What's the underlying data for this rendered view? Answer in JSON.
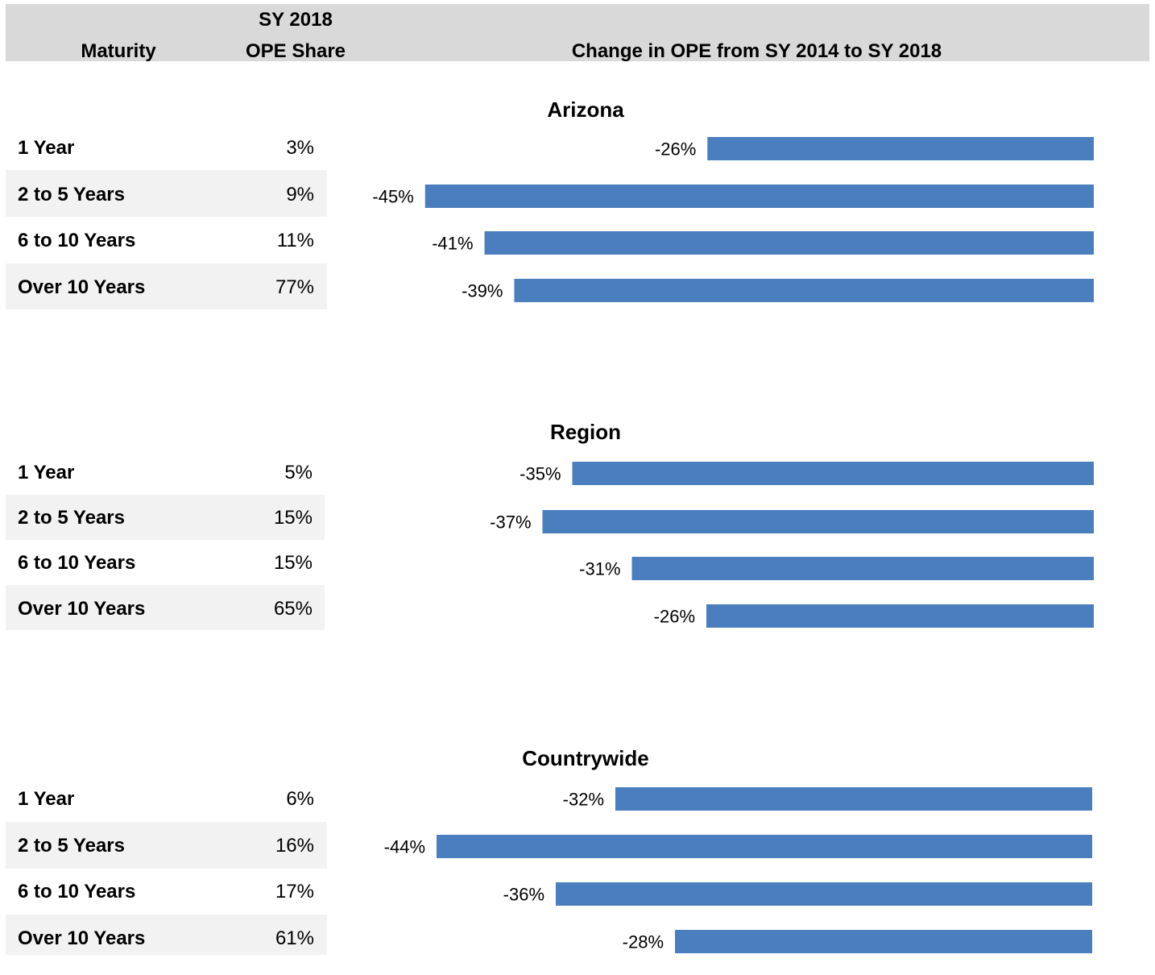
{
  "header": {
    "maturity": "Maturity",
    "share_line1": "SY 2018",
    "share_line2": "OPE Share",
    "change": "Change in OPE from SY 2014 to SY 2018"
  },
  "colors": {
    "bar": "#4a7ebf",
    "header_bg": "#d9d9d9",
    "row_band": "#f2f2f2"
  },
  "sections": [
    {
      "title": "Arizona",
      "rows": [
        {
          "maturity": "1 Year",
          "share": "3%",
          "change_label": "-26%"
        },
        {
          "maturity": "2 to 5 Years",
          "share": "9%",
          "change_label": "-45%"
        },
        {
          "maturity": "6 to 10 Years",
          "share": "11%",
          "change_label": "-41%"
        },
        {
          "maturity": "Over 10 Years",
          "share": "77%",
          "change_label": "-39%"
        }
      ]
    },
    {
      "title": "Region",
      "rows": [
        {
          "maturity": "1 Year",
          "share": "5%",
          "change_label": "-35%"
        },
        {
          "maturity": "2 to 5 Years",
          "share": "15%",
          "change_label": "-37%"
        },
        {
          "maturity": "6 to 10 Years",
          "share": "15%",
          "change_label": "-31%"
        },
        {
          "maturity": "Over 10 Years",
          "share": "65%",
          "change_label": "-26%"
        }
      ]
    },
    {
      "title": "Countrywide",
      "rows": [
        {
          "maturity": "1 Year",
          "share": "6%",
          "change_label": "-32%"
        },
        {
          "maturity": "2 to 5 Years",
          "share": "16%",
          "change_label": "-44%"
        },
        {
          "maturity": "6 to 10 Years",
          "share": "17%",
          "change_label": "-36%"
        },
        {
          "maturity": "Over 10 Years",
          "share": "61%",
          "change_label": "-28%"
        }
      ]
    }
  ],
  "chart_data": [
    {
      "type": "bar",
      "title": "Arizona",
      "categories": [
        "1 Year",
        "2 to 5 Years",
        "6 to 10 Years",
        "Over 10 Years"
      ],
      "values": [
        -26,
        -45,
        -41,
        -39
      ]
    },
    {
      "type": "bar",
      "title": "Region",
      "categories": [
        "1 Year",
        "2 to 5 Years",
        "6 to 10 Years",
        "Over 10 Years"
      ],
      "values": [
        -35,
        -37,
        -31,
        -26
      ]
    },
    {
      "type": "bar",
      "title": "Countrywide",
      "categories": [
        "1 Year",
        "2 to 5 Years",
        "6 to 10 Years",
        "Over 10 Years"
      ],
      "values": [
        -32,
        -44,
        -36,
        -28
      ]
    }
  ]
}
